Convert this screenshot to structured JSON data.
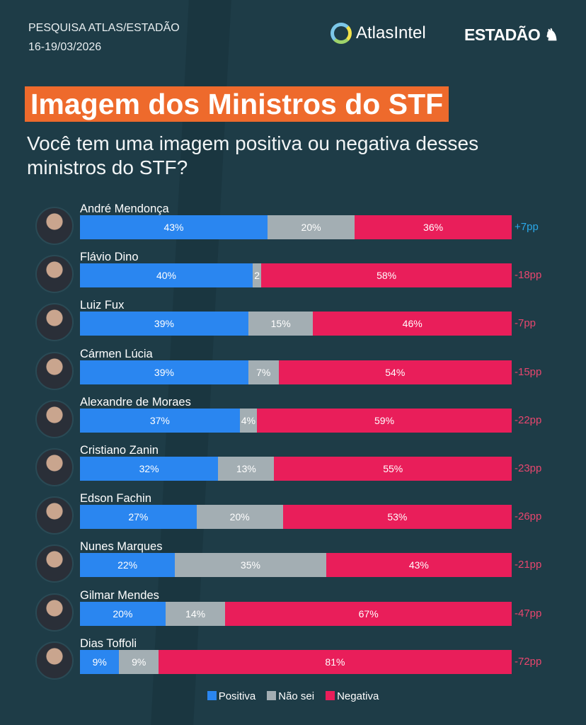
{
  "header": {
    "survey": "PESQUISA ATLAS/ESTADÃO",
    "dates": "16-19/03/2026",
    "logo_atlas": "AtlasIntel",
    "logo_estadao": "ESTADÃO"
  },
  "colors": {
    "positive": "#2a86f0",
    "unsure": "#a3aeb3",
    "negative": "#e91e5a",
    "diff_positive": "#2aa7e8",
    "diff_negative": "#e8466e"
  },
  "chart_data": {
    "type": "bar",
    "stacked": true,
    "orientation": "horizontal",
    "title": "Imagem dos Ministros do STF",
    "subtitle": "Você tem uma imagem positiva ou negativa desses ministros do STF?",
    "categories": [
      "André Mendonça",
      "Flávio Dino",
      "Luiz Fux",
      "Cármen Lúcia",
      "Alexandre de Moraes",
      "Cristiano Zanin",
      "Edson Fachin",
      "Nunes Marques",
      "Gilmar Mendes",
      "Dias Toffoli"
    ],
    "series": [
      {
        "name": "Positiva",
        "values": [
          43,
          40,
          39,
          39,
          37,
          32,
          27,
          22,
          20,
          9
        ]
      },
      {
        "name": "Não sei",
        "values": [
          20,
          2,
          15,
          7,
          4,
          13,
          20,
          35,
          14,
          9
        ]
      },
      {
        "name": "Negativa",
        "values": [
          36,
          58,
          46,
          54,
          59,
          55,
          53,
          43,
          67,
          81
        ]
      }
    ],
    "segment_labels": [
      [
        "43%",
        "20%",
        "36%"
      ],
      [
        "40%",
        "2",
        "58%"
      ],
      [
        "39%",
        "15%",
        "46%"
      ],
      [
        "39%",
        "7%",
        "54%"
      ],
      [
        "37%",
        "4%",
        "59%"
      ],
      [
        "32%",
        "13%",
        "55%"
      ],
      [
        "27%",
        "20%",
        "53%"
      ],
      [
        "22%",
        "35%",
        "43%"
      ],
      [
        "20%",
        "14%",
        "67%"
      ],
      [
        "9%",
        "9%",
        "81%"
      ]
    ],
    "net": [
      "+7pp",
      "-18pp",
      "-7pp",
      "-15pp",
      "-22pp",
      "-23pp",
      "-26pp",
      "-21pp",
      "-47pp",
      "-72pp"
    ],
    "legend_position": "bottom"
  }
}
